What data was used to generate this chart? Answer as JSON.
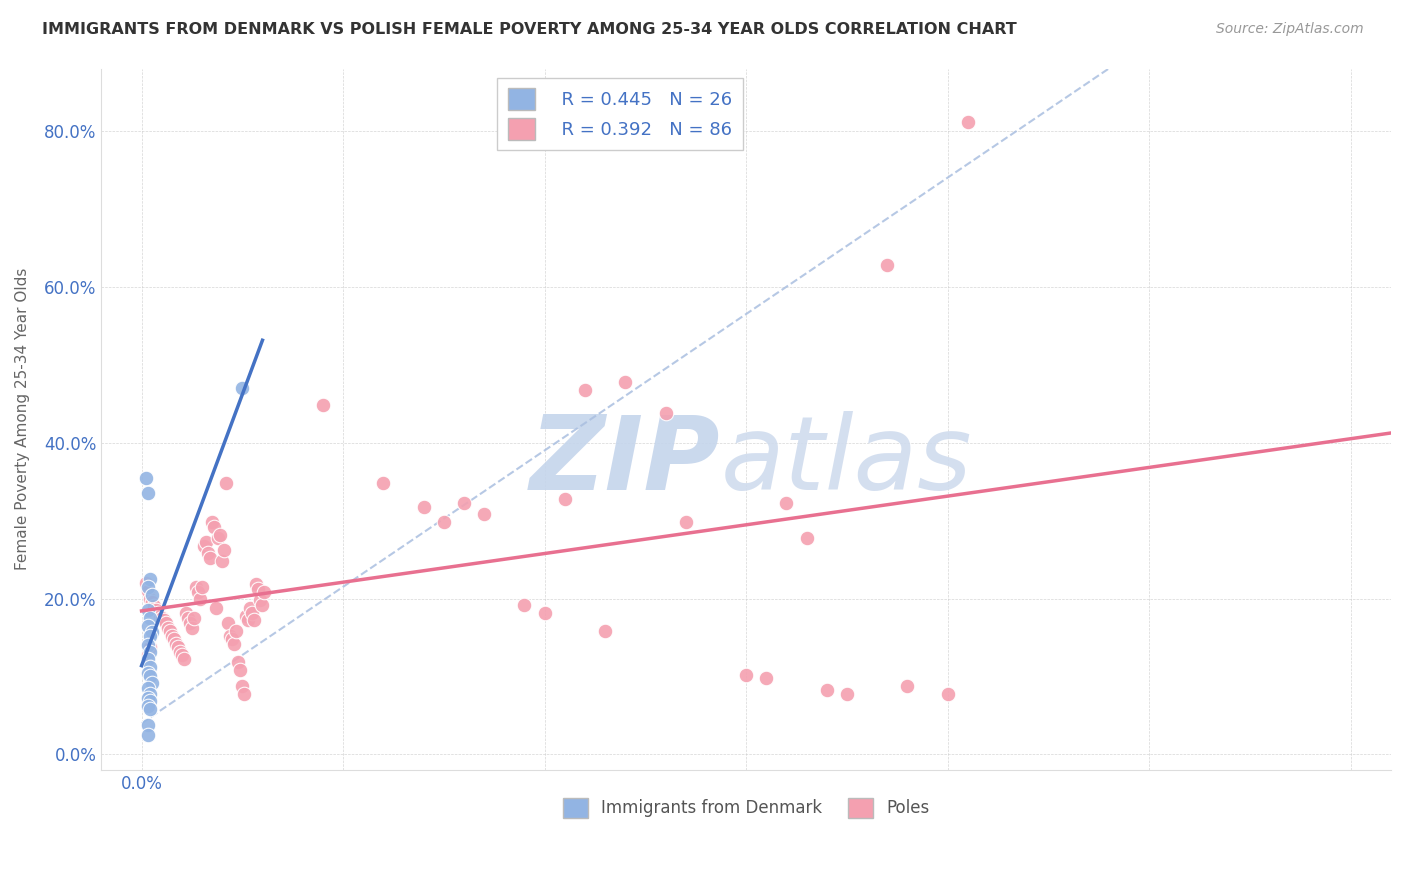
{
  "title": "IMMIGRANTS FROM DENMARK VS POLISH FEMALE POVERTY AMONG 25-34 YEAR OLDS CORRELATION CHART",
  "source": "Source: ZipAtlas.com",
  "ylabel_label": "Female Poverty Among 25-34 Year Olds",
  "xlim": [
    -0.002,
    0.062
  ],
  "ylim": [
    -0.02,
    0.88
  ],
  "ytick_vals": [
    0.0,
    0.2,
    0.4,
    0.6,
    0.8
  ],
  "ytick_labels": [
    "0.0%",
    "20.0%",
    "40.0%",
    "60.0%",
    "80.0%"
  ],
  "xtick_vals": [
    0.0,
    0.01,
    0.02,
    0.03,
    0.04,
    0.05,
    0.06
  ],
  "xtick_labels": [
    "0.0%",
    "",
    "",
    "",
    "",
    "",
    ""
  ],
  "legend_r_denmark": "R = 0.445",
  "legend_n_denmark": "N = 26",
  "legend_r_poles": "R = 0.392",
  "legend_n_poles": "N = 86",
  "denmark_color": "#92B4E3",
  "poles_color": "#F4A0B0",
  "denmark_trend_color": "#4472C4",
  "poles_trend_color": "#E87090",
  "dashed_line_color": "#AABFE0",
  "background_color": "#FFFFFF",
  "denmark_points": [
    [
      0.0002,
      0.355
    ],
    [
      0.0003,
      0.335
    ],
    [
      0.0004,
      0.225
    ],
    [
      0.0003,
      0.215
    ],
    [
      0.0005,
      0.205
    ],
    [
      0.0003,
      0.185
    ],
    [
      0.0004,
      0.175
    ],
    [
      0.0003,
      0.165
    ],
    [
      0.0005,
      0.157
    ],
    [
      0.0004,
      0.152
    ],
    [
      0.0003,
      0.14
    ],
    [
      0.0004,
      0.132
    ],
    [
      0.0003,
      0.122
    ],
    [
      0.0004,
      0.112
    ],
    [
      0.0003,
      0.105
    ],
    [
      0.0004,
      0.1
    ],
    [
      0.0005,
      0.092
    ],
    [
      0.0003,
      0.085
    ],
    [
      0.0004,
      0.078
    ],
    [
      0.0003,
      0.072
    ],
    [
      0.0004,
      0.068
    ],
    [
      0.0003,
      0.062
    ],
    [
      0.0004,
      0.058
    ],
    [
      0.0003,
      0.038
    ],
    [
      0.005,
      0.47
    ],
    [
      0.0003,
      0.025
    ]
  ],
  "poles_points": [
    [
      0.0002,
      0.22
    ],
    [
      0.0003,
      0.21
    ],
    [
      0.0004,
      0.2
    ],
    [
      0.0005,
      0.195
    ],
    [
      0.0006,
      0.19
    ],
    [
      0.0007,
      0.185
    ],
    [
      0.0008,
      0.182
    ],
    [
      0.0009,
      0.178
    ],
    [
      0.001,
      0.175
    ],
    [
      0.0011,
      0.172
    ],
    [
      0.0012,
      0.168
    ],
    [
      0.0013,
      0.162
    ],
    [
      0.0014,
      0.158
    ],
    [
      0.0015,
      0.152
    ],
    [
      0.0016,
      0.148
    ],
    [
      0.0017,
      0.142
    ],
    [
      0.0018,
      0.138
    ],
    [
      0.0019,
      0.132
    ],
    [
      0.002,
      0.128
    ],
    [
      0.0021,
      0.122
    ],
    [
      0.0022,
      0.182
    ],
    [
      0.0023,
      0.175
    ],
    [
      0.0024,
      0.168
    ],
    [
      0.0025,
      0.162
    ],
    [
      0.0026,
      0.175
    ],
    [
      0.0027,
      0.215
    ],
    [
      0.0028,
      0.208
    ],
    [
      0.0029,
      0.2
    ],
    [
      0.003,
      0.215
    ],
    [
      0.0031,
      0.268
    ],
    [
      0.0032,
      0.272
    ],
    [
      0.0033,
      0.258
    ],
    [
      0.0034,
      0.252
    ],
    [
      0.0035,
      0.298
    ],
    [
      0.0036,
      0.292
    ],
    [
      0.0037,
      0.188
    ],
    [
      0.0038,
      0.278
    ],
    [
      0.0039,
      0.282
    ],
    [
      0.004,
      0.248
    ],
    [
      0.0041,
      0.262
    ],
    [
      0.0042,
      0.348
    ],
    [
      0.0043,
      0.168
    ],
    [
      0.0044,
      0.152
    ],
    [
      0.0045,
      0.148
    ],
    [
      0.0046,
      0.142
    ],
    [
      0.0047,
      0.158
    ],
    [
      0.0048,
      0.118
    ],
    [
      0.0049,
      0.108
    ],
    [
      0.005,
      0.088
    ],
    [
      0.0051,
      0.078
    ],
    [
      0.0052,
      0.178
    ],
    [
      0.0053,
      0.172
    ],
    [
      0.0054,
      0.188
    ],
    [
      0.0055,
      0.182
    ],
    [
      0.0056,
      0.172
    ],
    [
      0.0057,
      0.218
    ],
    [
      0.0058,
      0.212
    ],
    [
      0.0059,
      0.198
    ],
    [
      0.006,
      0.192
    ],
    [
      0.0061,
      0.208
    ],
    [
      0.009,
      0.448
    ],
    [
      0.012,
      0.348
    ],
    [
      0.014,
      0.318
    ],
    [
      0.015,
      0.298
    ],
    [
      0.016,
      0.322
    ],
    [
      0.017,
      0.308
    ],
    [
      0.019,
      0.192
    ],
    [
      0.02,
      0.182
    ],
    [
      0.021,
      0.328
    ],
    [
      0.022,
      0.468
    ],
    [
      0.023,
      0.158
    ],
    [
      0.024,
      0.478
    ],
    [
      0.026,
      0.438
    ],
    [
      0.027,
      0.298
    ],
    [
      0.03,
      0.102
    ],
    [
      0.031,
      0.098
    ],
    [
      0.032,
      0.322
    ],
    [
      0.033,
      0.278
    ],
    [
      0.034,
      0.082
    ],
    [
      0.035,
      0.078
    ],
    [
      0.037,
      0.628
    ],
    [
      0.038,
      0.088
    ],
    [
      0.04,
      0.078
    ],
    [
      0.041,
      0.812
    ],
    [
      0.0003,
      0.128
    ],
    [
      0.0004,
      0.138
    ]
  ],
  "zip_text1": "ZIP",
  "zip_text2": "atlas",
  "zip_color1": "#C8D8F0",
  "zip_color2": "#C0D0EC"
}
